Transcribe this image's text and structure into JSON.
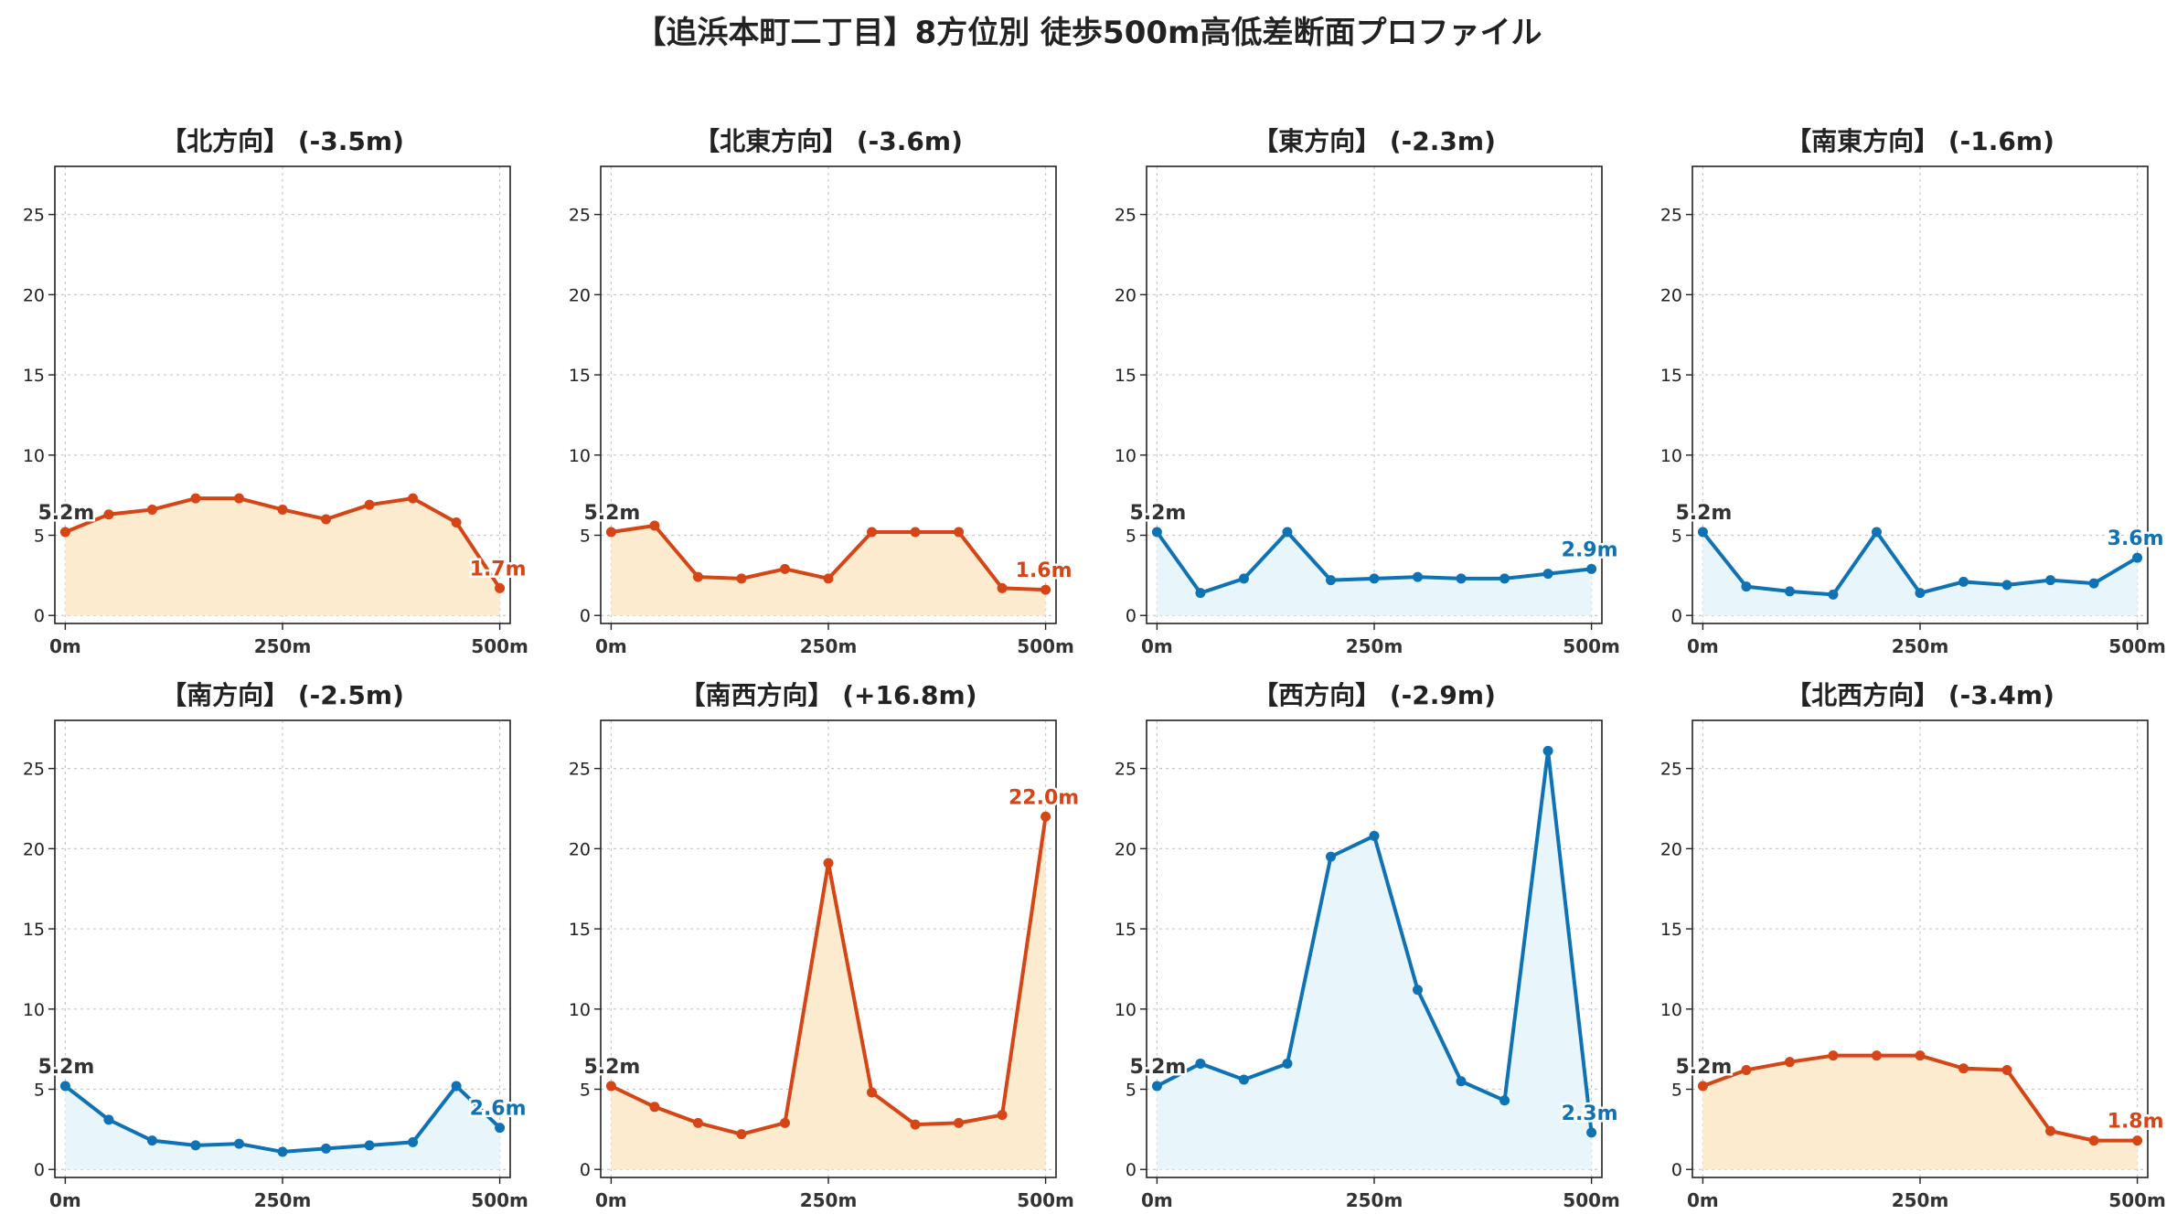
{
  "title": "【追浜本町二丁目】8方位別 徒歩500m高低差断面プロファイル",
  "colors": {
    "up_line": "#d54515",
    "up_fill": "#fdebd0",
    "down_line": "#0f72b4",
    "down_fill": "#e8f6fb",
    "grid": "#c8c8c8",
    "axis": "#222222"
  },
  "chart_data": [
    {
      "type": "area",
      "title": "【北方向】 (-3.5m)",
      "trend": "up",
      "x": [
        0,
        50,
        100,
        150,
        200,
        250,
        300,
        350,
        400,
        450,
        500
      ],
      "values": [
        5.2,
        6.3,
        6.6,
        7.3,
        7.3,
        6.6,
        6.0,
        6.9,
        7.3,
        5.8,
        1.7
      ],
      "start_label": "5.2m",
      "end_label": "1.7m",
      "xticks": [
        "0m",
        "250m",
        "500m"
      ],
      "yticks": [
        0,
        5,
        10,
        15,
        20,
        25
      ],
      "ylim": [
        -0.5,
        28
      ],
      "xlim": [
        -12,
        512
      ],
      "grid": true
    },
    {
      "type": "area",
      "title": "【北東方向】 (-3.6m)",
      "trend": "up",
      "x": [
        0,
        50,
        100,
        150,
        200,
        250,
        300,
        350,
        400,
        450,
        500
      ],
      "values": [
        5.2,
        5.6,
        2.4,
        2.3,
        2.9,
        2.3,
        5.2,
        5.2,
        5.2,
        1.7,
        1.6
      ],
      "start_label": "5.2m",
      "end_label": "1.6m",
      "xticks": [
        "0m",
        "250m",
        "500m"
      ],
      "yticks": [
        0,
        5,
        10,
        15,
        20,
        25
      ],
      "ylim": [
        -0.5,
        28
      ],
      "xlim": [
        -12,
        512
      ],
      "grid": true
    },
    {
      "type": "area",
      "title": "【東方向】 (-2.3m)",
      "trend": "down",
      "x": [
        0,
        50,
        100,
        150,
        200,
        250,
        300,
        350,
        400,
        450,
        500
      ],
      "values": [
        5.2,
        1.4,
        2.3,
        5.2,
        2.2,
        2.3,
        2.4,
        2.3,
        2.3,
        2.6,
        2.9
      ],
      "start_label": "5.2m",
      "end_label": "2.9m",
      "xticks": [
        "0m",
        "250m",
        "500m"
      ],
      "yticks": [
        0,
        5,
        10,
        15,
        20,
        25
      ],
      "ylim": [
        -0.5,
        28
      ],
      "xlim": [
        -12,
        512
      ],
      "grid": true
    },
    {
      "type": "area",
      "title": "【南東方向】 (-1.6m)",
      "trend": "down",
      "x": [
        0,
        50,
        100,
        150,
        200,
        250,
        300,
        350,
        400,
        450,
        500
      ],
      "values": [
        5.2,
        1.8,
        1.5,
        1.3,
        5.2,
        1.4,
        2.1,
        1.9,
        2.2,
        2.0,
        3.6
      ],
      "start_label": "5.2m",
      "end_label": "3.6m",
      "xticks": [
        "0m",
        "250m",
        "500m"
      ],
      "yticks": [
        0,
        5,
        10,
        15,
        20,
        25
      ],
      "ylim": [
        -0.5,
        28
      ],
      "xlim": [
        -12,
        512
      ],
      "grid": true
    },
    {
      "type": "area",
      "title": "【南方向】 (-2.5m)",
      "trend": "down",
      "x": [
        0,
        50,
        100,
        150,
        200,
        250,
        300,
        350,
        400,
        450,
        500
      ],
      "values": [
        5.2,
        3.1,
        1.8,
        1.5,
        1.6,
        1.1,
        1.3,
        1.5,
        1.7,
        5.2,
        2.6
      ],
      "start_label": "5.2m",
      "end_label": "2.6m",
      "xticks": [
        "0m",
        "250m",
        "500m"
      ],
      "yticks": [
        0,
        5,
        10,
        15,
        20,
        25
      ],
      "ylim": [
        -0.5,
        28
      ],
      "xlim": [
        -12,
        512
      ],
      "grid": true
    },
    {
      "type": "area",
      "title": "【南西方向】 (+16.8m)",
      "trend": "up",
      "x": [
        0,
        50,
        100,
        150,
        200,
        250,
        300,
        350,
        400,
        450,
        500
      ],
      "values": [
        5.2,
        3.9,
        2.9,
        2.2,
        2.9,
        19.1,
        4.8,
        2.8,
        2.9,
        3.4,
        22.0
      ],
      "start_label": "5.2m",
      "end_label": "22.0m",
      "xticks": [
        "0m",
        "250m",
        "500m"
      ],
      "yticks": [
        0,
        5,
        10,
        15,
        20,
        25
      ],
      "ylim": [
        -0.5,
        28
      ],
      "xlim": [
        -12,
        512
      ],
      "grid": true
    },
    {
      "type": "area",
      "title": "【西方向】 (-2.9m)",
      "trend": "down",
      "x": [
        0,
        50,
        100,
        150,
        200,
        250,
        300,
        350,
        400,
        450,
        500
      ],
      "values": [
        5.2,
        6.6,
        5.6,
        6.6,
        19.5,
        20.8,
        11.2,
        5.5,
        4.3,
        26.1,
        2.3
      ],
      "start_label": "5.2m",
      "end_label": "2.3m",
      "xticks": [
        "0m",
        "250m",
        "500m"
      ],
      "yticks": [
        0,
        5,
        10,
        15,
        20,
        25
      ],
      "ylim": [
        -0.5,
        28
      ],
      "xlim": [
        -12,
        512
      ],
      "grid": true
    },
    {
      "type": "area",
      "title": "【北西方向】 (-3.4m)",
      "trend": "up",
      "x": [
        0,
        50,
        100,
        150,
        200,
        250,
        300,
        350,
        400,
        450,
        500
      ],
      "values": [
        5.2,
        6.2,
        6.7,
        7.1,
        7.1,
        7.1,
        6.3,
        6.2,
        2.4,
        1.8,
        1.8
      ],
      "start_label": "5.2m",
      "end_label": "1.8m",
      "xticks": [
        "0m",
        "250m",
        "500m"
      ],
      "yticks": [
        0,
        5,
        10,
        15,
        20,
        25
      ],
      "ylim": [
        -0.5,
        28
      ],
      "xlim": [
        -12,
        512
      ],
      "grid": true
    }
  ]
}
